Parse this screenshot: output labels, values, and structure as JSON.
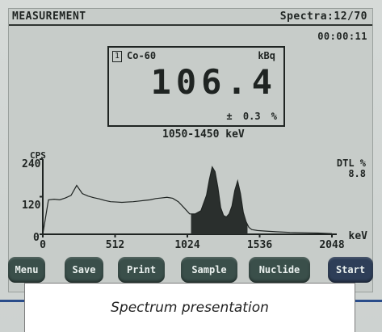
{
  "header": {
    "title": "MEASUREMENT",
    "spectra": "Spectra:12/70",
    "timer": "00:00:11"
  },
  "result": {
    "slot": "1",
    "nuclide": "Co-60",
    "unit": "kBq",
    "value": "106.4",
    "uncertainty": "±  0.3 %",
    "energy_range": "1050-1450 keV"
  },
  "dtl": {
    "label": "DTL %",
    "value": "8.8"
  },
  "chart_data": {
    "type": "area",
    "ylabel": "CPS",
    "xlabel": "keV",
    "xlim": [
      0,
      2048
    ],
    "ylim": [
      0,
      240
    ],
    "x_ticks": [
      "0",
      "512",
      "1024",
      "1536",
      "2048"
    ],
    "y_ticks": [
      "240",
      "120",
      "0"
    ],
    "highlighted_region": [
      1050,
      1450
    ],
    "series": [
      {
        "x": [
          0,
          40,
          80,
          120,
          160,
          200,
          240,
          280,
          320,
          360,
          400,
          440,
          480,
          520,
          560,
          600,
          640,
          680,
          720,
          760,
          800,
          840,
          880,
          920,
          960,
          1000,
          1040,
          1080,
          1120,
          1160,
          1180,
          1200,
          1220,
          1240,
          1260,
          1280,
          1300,
          1320,
          1340,
          1360,
          1380,
          1400,
          1420,
          1440,
          1460,
          1480,
          1520,
          1580,
          1650,
          1750,
          1850,
          1950,
          2000,
          2048
        ],
        "y": [
          0,
          110,
          112,
          110,
          116,
          124,
          156,
          130,
          122,
          117,
          113,
          108,
          104,
          103,
          102,
          103,
          104,
          106,
          108,
          110,
          114,
          116,
          118,
          115,
          104,
          85,
          65,
          65,
          75,
          125,
          175,
          215,
          200,
          150,
          85,
          60,
          55,
          65,
          90,
          140,
          170,
          130,
          70,
          40,
          22,
          15,
          12,
          10,
          8,
          6,
          5,
          4,
          3,
          2
        ]
      }
    ]
  },
  "buttons": [
    {
      "label": "Menu",
      "name": "menu-button"
    },
    {
      "label": "Save",
      "name": "save-button"
    },
    {
      "label": "Print",
      "name": "print-button"
    },
    {
      "label": "Sample",
      "name": "sample-button"
    },
    {
      "label": "Nuclide",
      "name": "nuclide-button"
    },
    {
      "label": "Start",
      "name": "start-button"
    }
  ],
  "caption": "Spectrum presentation",
  "colors": {
    "lcd_background": "#c7ccc9",
    "lcd_ink": "#1f2422",
    "button": "#3a4f4a",
    "start_button": "#2e3e58",
    "accent_line": "#2a4d8a"
  }
}
